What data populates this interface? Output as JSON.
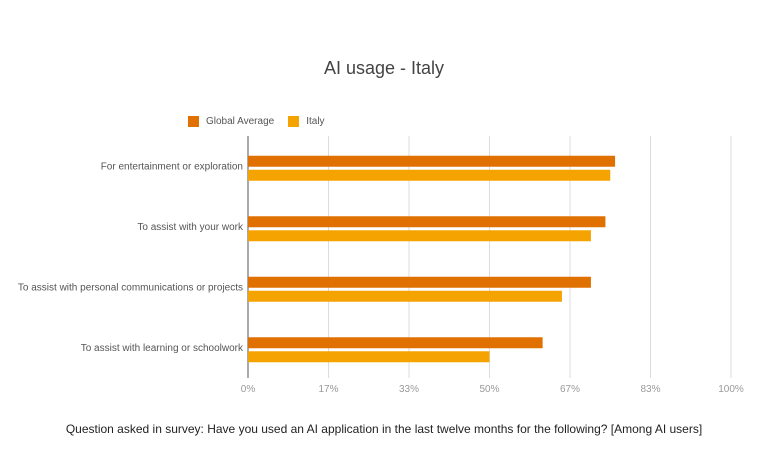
{
  "chart_data": {
    "type": "bar",
    "orientation": "horizontal",
    "title": "AI usage - Italy",
    "categories": [
      "For entertainment or exploration",
      "To assist with your work",
      "To assist with personal communications or projects",
      "To assist with learning or schoolwork"
    ],
    "series": [
      {
        "name": "Global Average",
        "color": "#E07000",
        "values": [
          76,
          74,
          71,
          61
        ]
      },
      {
        "name": "Italy",
        "color": "#F5A300",
        "values": [
          75,
          71,
          65,
          50
        ]
      }
    ],
    "x_ticks": [
      "0%",
      "17%",
      "33%",
      "50%",
      "67%",
      "83%",
      "100%"
    ],
    "xlim": [
      0,
      100
    ],
    "grid": true,
    "legend_position": "top-left"
  },
  "footnote": "Question asked in survey: Have you used an AI application in the last twelve months for the following? [Among AI users]"
}
